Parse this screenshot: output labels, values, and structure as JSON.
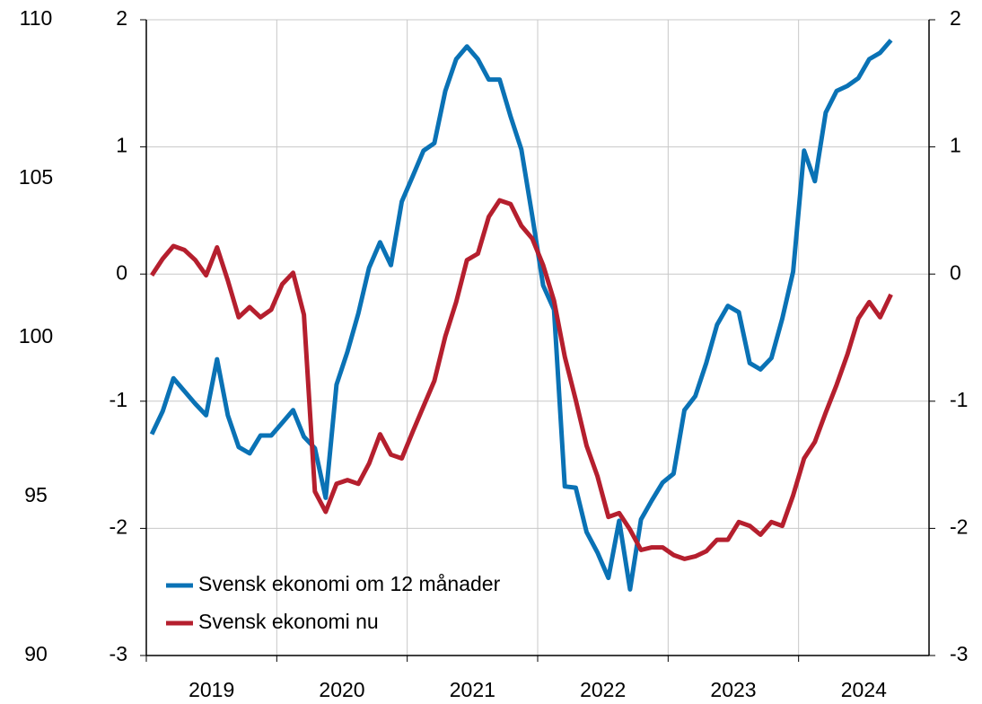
{
  "chart_data": {
    "type": "line",
    "x": [
      2019.042,
      2019.125,
      2019.208,
      2019.292,
      2019.375,
      2019.458,
      2019.542,
      2019.625,
      2019.708,
      2019.792,
      2019.875,
      2019.958,
      2020.042,
      2020.125,
      2020.208,
      2020.292,
      2020.375,
      2020.458,
      2020.542,
      2020.625,
      2020.708,
      2020.792,
      2020.875,
      2020.958,
      2021.042,
      2021.125,
      2021.208,
      2021.292,
      2021.375,
      2021.458,
      2021.542,
      2021.625,
      2021.708,
      2021.792,
      2021.875,
      2021.958,
      2022.042,
      2022.125,
      2022.208,
      2022.292,
      2022.375,
      2022.458,
      2022.542,
      2022.625,
      2022.708,
      2022.792,
      2022.875,
      2022.958,
      2023.042,
      2023.125,
      2023.208,
      2023.292,
      2023.375,
      2023.458,
      2023.542,
      2023.625,
      2023.708,
      2023.792,
      2023.875,
      2023.958,
      2024.042,
      2024.125,
      2024.208,
      2024.292,
      2024.375,
      2024.458,
      2024.542,
      2024.625,
      2024.708
    ],
    "series": [
      {
        "name": "Svensk ekonomi om 12 månader",
        "color": "#0a72b5",
        "values": [
          -1.26,
          -1.08,
          -0.82,
          -0.92,
          -1.02,
          -1.11,
          -0.67,
          -1.11,
          -1.36,
          -1.41,
          -1.27,
          -1.27,
          -1.17,
          -1.07,
          -1.28,
          -1.37,
          -1.76,
          -0.87,
          -0.61,
          -0.31,
          0.05,
          0.25,
          0.07,
          0.57,
          0.77,
          0.97,
          1.03,
          1.44,
          1.69,
          1.79,
          1.69,
          1.53,
          1.53,
          1.24,
          0.98,
          0.46,
          -0.09,
          -0.28,
          -1.67,
          -1.68,
          -2.03,
          -2.19,
          -2.39,
          -1.94,
          -2.48,
          -1.93,
          -1.78,
          -1.64,
          -1.57,
          -1.07,
          -0.96,
          -0.7,
          -0.4,
          -0.25,
          -0.3,
          -0.7,
          -0.75,
          -0.66,
          -0.35,
          0.02,
          0.97,
          0.73,
          1.27,
          1.44,
          1.48,
          1.54,
          1.69,
          1.74,
          1.84
        ]
      },
      {
        "name": "Svensk ekonomi nu",
        "color": "#b51f2e",
        "values": [
          -0.01,
          0.12,
          0.22,
          0.19,
          0.11,
          -0.01,
          0.21,
          -0.05,
          -0.34,
          -0.26,
          -0.34,
          -0.28,
          -0.08,
          0.01,
          -0.32,
          -1.71,
          -1.87,
          -1.65,
          -1.62,
          -1.65,
          -1.49,
          -1.26,
          -1.42,
          -1.45,
          -1.24,
          -1.04,
          -0.84,
          -0.49,
          -0.22,
          0.11,
          0.16,
          0.45,
          0.58,
          0.55,
          0.38,
          0.28,
          0.07,
          -0.21,
          -0.65,
          -0.99,
          -1.35,
          -1.59,
          -1.91,
          -1.88,
          -2.01,
          -2.17,
          -2.15,
          -2.15,
          -2.21,
          -2.24,
          -2.22,
          -2.18,
          -2.09,
          -2.09,
          -1.95,
          -1.98,
          -2.05,
          -1.95,
          -1.98,
          -1.74,
          -1.45,
          -1.32,
          -1.09,
          -0.87,
          -0.63,
          -0.35,
          -0.22,
          -0.34,
          -0.16
        ]
      }
    ],
    "xlim": [
      2019,
      2025
    ],
    "xticks": [
      {
        "value": 2019.5,
        "label": "2019"
      },
      {
        "value": 2020.5,
        "label": "2020"
      },
      {
        "value": 2021.5,
        "label": "2021"
      },
      {
        "value": 2022.5,
        "label": "2022"
      },
      {
        "value": 2023.5,
        "label": "2023"
      },
      {
        "value": 2024.5,
        "label": "2024"
      }
    ],
    "ylim": [
      -3,
      2
    ],
    "yticks": [
      -3,
      -2,
      -1,
      0,
      1,
      2
    ],
    "y2lim": [
      90,
      110
    ],
    "y2ticks": [
      90,
      95,
      100,
      105,
      110
    ],
    "grid": true,
    "legend": "lower left"
  }
}
